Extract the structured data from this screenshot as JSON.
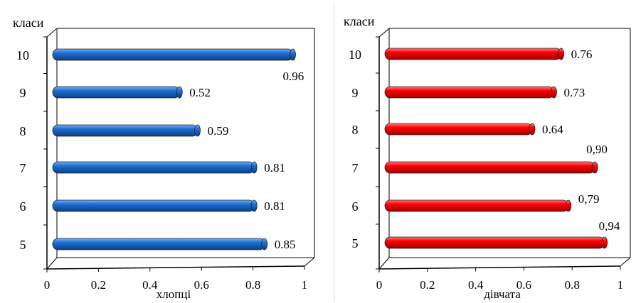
{
  "chart_data": [
    {
      "type": "bar",
      "orientation": "horizontal",
      "ylabel": "класи",
      "xlabel": "хлопці",
      "categories": [
        "5",
        "6",
        "7",
        "8",
        "9",
        "10"
      ],
      "values": [
        0.85,
        0.81,
        0.81,
        0.59,
        0.52,
        0.96
      ],
      "value_labels": [
        "0.85",
        "0.81",
        "0.81",
        "0.59",
        "0.52",
        "0.96"
      ],
      "xlim": [
        0,
        1
      ],
      "xticks": [
        "0",
        "0.2",
        "0.4",
        "0.6",
        "0.8",
        "1"
      ],
      "color": "#1f6fd1",
      "grid": false
    },
    {
      "type": "bar",
      "orientation": "horizontal",
      "ylabel": "класи",
      "xlabel": "дівчата",
      "categories": [
        "5",
        "6",
        "7",
        "8",
        "9",
        "10"
      ],
      "values": [
        0.94,
        0.79,
        0.9,
        0.64,
        0.73,
        0.76
      ],
      "value_labels": [
        "0,94",
        "0,79",
        "0,90",
        "0.64",
        "0.73",
        "0.76"
      ],
      "xlim": [
        0,
        1
      ],
      "xticks": [
        "0",
        "0.2",
        "0.4",
        "0.6",
        "0.8",
        "1"
      ],
      "color": "#ff0000",
      "grid": false
    }
  ]
}
